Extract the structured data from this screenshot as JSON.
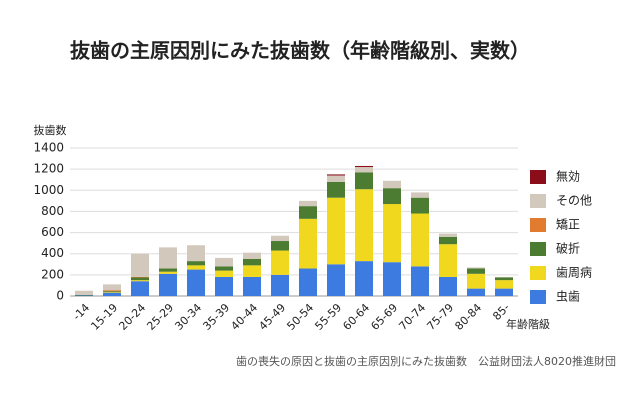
{
  "chart_data": {
    "type": "bar",
    "stacked": true,
    "title": "抜歯の主原因別にみた抜歯数（年齢階級別、実数）",
    "y_label": "抜歯数",
    "x_label": "年齢階級",
    "source": "歯の喪失の原因と抜歯の主原因別にみた抜歯数　公益財団法人8020推進財団",
    "categories": [
      "-14",
      "15-19",
      "20-24",
      "25-29",
      "30-34",
      "35-39",
      "40-44",
      "45-49",
      "50-54",
      "55-59",
      "60-64",
      "65-69",
      "70-74",
      "75-79",
      "80-84",
      "85-"
    ],
    "series": [
      {
        "name": "虫歯",
        "color": "#3d7be0",
        "values": [
          5,
          30,
          140,
          210,
          250,
          180,
          180,
          200,
          260,
          300,
          330,
          320,
          280,
          180,
          70,
          70
        ]
      },
      {
        "name": "歯周病",
        "color": "#f0d81e",
        "values": [
          0,
          5,
          10,
          20,
          40,
          60,
          110,
          230,
          470,
          630,
          680,
          550,
          500,
          310,
          140,
          80
        ]
      },
      {
        "name": "破折",
        "color": "#4b7c32",
        "values": [
          5,
          10,
          25,
          30,
          40,
          40,
          60,
          90,
          120,
          150,
          160,
          150,
          150,
          70,
          50,
          25
        ]
      },
      {
        "name": "矯正",
        "color": "#e07b30",
        "values": [
          0,
          10,
          5,
          0,
          0,
          0,
          0,
          0,
          0,
          0,
          0,
          0,
          0,
          0,
          0,
          0
        ]
      },
      {
        "name": "その他",
        "color": "#d3c8bc",
        "values": [
          40,
          55,
          220,
          200,
          150,
          80,
          60,
          50,
          50,
          60,
          50,
          70,
          50,
          30,
          10,
          5
        ]
      },
      {
        "name": "無効",
        "color": "#8b0d1a",
        "values": [
          0,
          0,
          0,
          0,
          0,
          0,
          0,
          0,
          0,
          10,
          10,
          0,
          0,
          0,
          0,
          0
        ]
      }
    ],
    "ylim": [
      0,
      1400
    ],
    "yticks": [
      0,
      200,
      400,
      600,
      800,
      1000,
      1200,
      1400
    ],
    "grid": true,
    "legend": "right"
  }
}
